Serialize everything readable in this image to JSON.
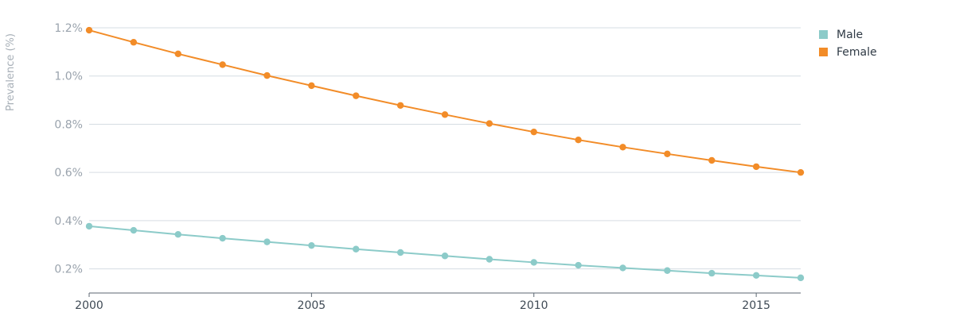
{
  "chart_data": {
    "type": "line",
    "title": "",
    "xlabel": "",
    "ylabel": "Prevalence (%)",
    "x": [
      2000,
      2001,
      2002,
      2003,
      2004,
      2005,
      2006,
      2007,
      2008,
      2009,
      2010,
      2011,
      2012,
      2013,
      2014,
      2015,
      2016
    ],
    "x_ticks": [
      2000,
      2005,
      2010,
      2015
    ],
    "y_ticks": [
      0.2,
      0.4,
      0.6,
      0.8,
      1.0,
      1.2
    ],
    "y_tick_labels": [
      "0.2%",
      "0.4%",
      "0.6%",
      "0.8%",
      "1.0%",
      "1.2%"
    ],
    "xlim": [
      2000,
      2016
    ],
    "ylim": [
      0.1,
      1.2
    ],
    "grid": "horizontal",
    "legend_position": "top-right",
    "series": [
      {
        "name": "Male",
        "color": "#8ccbc9",
        "values": [
          0.377,
          0.36,
          0.343,
          0.327,
          0.312,
          0.297,
          0.282,
          0.268,
          0.254,
          0.24,
          0.227,
          0.215,
          0.204,
          0.193,
          0.182,
          0.173,
          0.163
        ]
      },
      {
        "name": "Female",
        "color": "#f28c28",
        "values": [
          1.19,
          1.14,
          1.092,
          1.047,
          1.002,
          0.96,
          0.918,
          0.878,
          0.84,
          0.803,
          0.768,
          0.735,
          0.705,
          0.677,
          0.65,
          0.624,
          0.6
        ]
      }
    ]
  }
}
